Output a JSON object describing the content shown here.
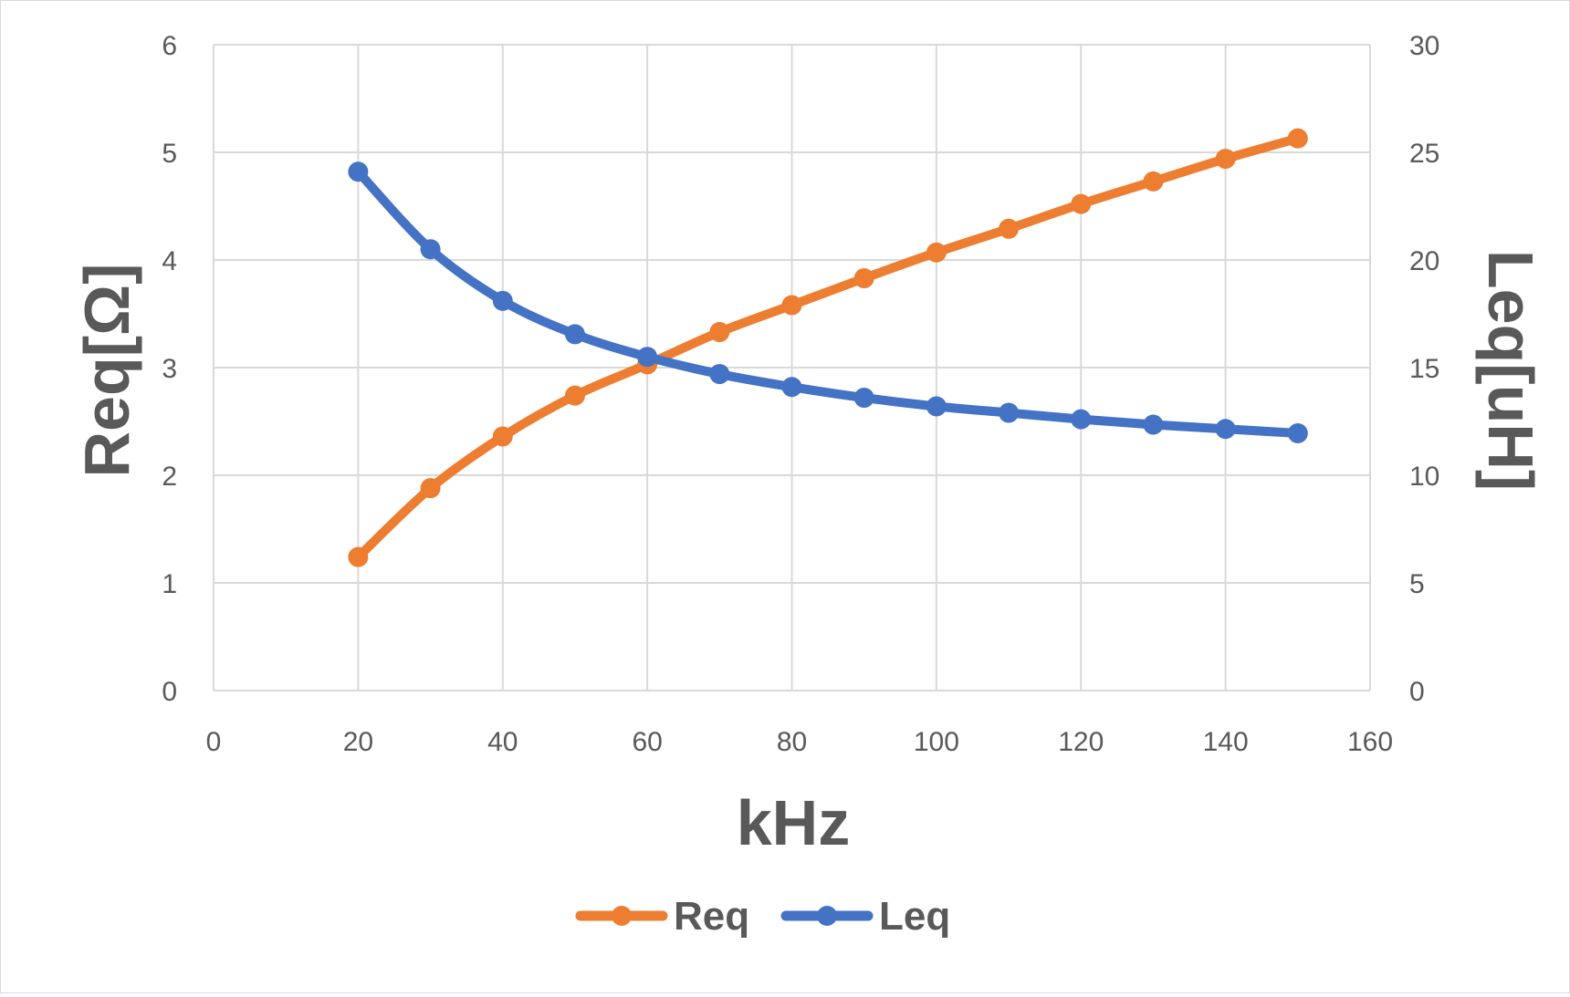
{
  "chart_data": {
    "type": "line",
    "xlabel": "kHz",
    "ylabel": "Req[Ω]",
    "y2label": "Leq[uH]",
    "xlim": [
      0,
      160
    ],
    "ylim": [
      0,
      6
    ],
    "y2lim": [
      0,
      30
    ],
    "x_ticks": [
      0,
      20,
      40,
      60,
      80,
      100,
      120,
      140,
      160
    ],
    "y_ticks": [
      0,
      1,
      2,
      3,
      4,
      5,
      6
    ],
    "y2_ticks": [
      0,
      5,
      10,
      15,
      20,
      25,
      30
    ],
    "grid": true,
    "legend_position": "bottom-center",
    "x": [
      20,
      30,
      40,
      50,
      60,
      70,
      80,
      90,
      100,
      110,
      120,
      130,
      140,
      150
    ],
    "series": [
      {
        "name": "Req",
        "axis": "left",
        "color": "#ED7D31",
        "values": [
          1.24,
          1.88,
          2.36,
          2.74,
          3.03,
          3.33,
          3.58,
          3.83,
          4.07,
          4.29,
          4.52,
          4.73,
          4.94,
          5.13
        ]
      },
      {
        "name": "Leq",
        "axis": "right",
        "color": "#4472C4",
        "values": [
          24.1,
          20.5,
          18.1,
          16.55,
          15.5,
          14.7,
          14.1,
          13.6,
          13.2,
          12.9,
          12.6,
          12.35,
          12.15,
          11.95
        ]
      }
    ]
  }
}
